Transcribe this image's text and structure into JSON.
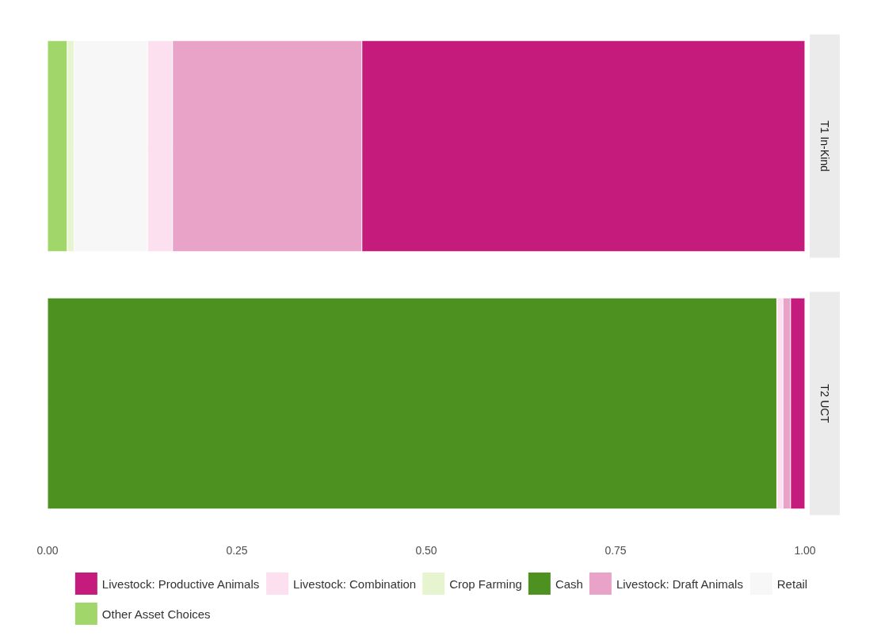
{
  "chart_data": {
    "type": "bar",
    "orientation": "horizontal",
    "stacked": true,
    "categories": [
      "T1 In-Kind",
      "T2 UCT"
    ],
    "series": [
      {
        "name": "Cash",
        "color": "#4d9221",
        "values": [
          0,
          0.963
        ]
      },
      {
        "name": "Other Asset Choices",
        "color": "#a1d76a",
        "values": [
          0.026,
          0
        ]
      },
      {
        "name": "Crop Farming",
        "color": "#e6f5d0",
        "values": [
          0.009,
          0
        ]
      },
      {
        "name": "Retail",
        "color": "#f7f7f7",
        "values": [
          0.097,
          null
        ]
      },
      {
        "name": "Livestock: Combination",
        "color": "#fde0ef",
        "values": [
          0.033,
          0.008
        ]
      },
      {
        "name": "Livestock: Draft Animals",
        "color": "#e9a3c9",
        "values": [
          0.25,
          0.01
        ]
      },
      {
        "name": "Livestock: Productive Animals",
        "color": "#c51b7d",
        "values": [
          0.585,
          0.019
        ]
      }
    ],
    "xlim": [
      0,
      1
    ],
    "xticks": [
      {
        "value": 0,
        "label": "0.00"
      },
      {
        "value": 0.25,
        "label": "0.25"
      },
      {
        "value": 0.5,
        "label": "0.50"
      },
      {
        "value": 0.75,
        "label": "0.75"
      },
      {
        "value": 1,
        "label": "1.00"
      }
    ],
    "grid": "y",
    "legend": "bottom"
  }
}
